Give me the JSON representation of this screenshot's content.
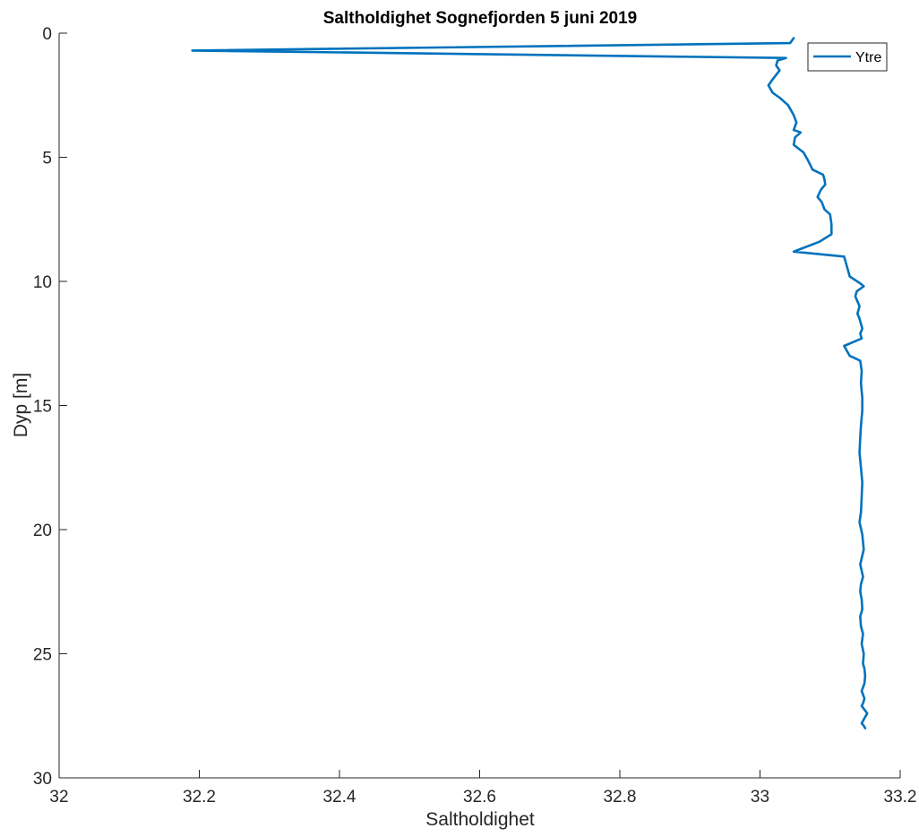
{
  "chart_data": {
    "type": "line",
    "title": "Saltholdighet Sognefjorden 5 juni 2019",
    "xlabel": "Saltholdighet",
    "ylabel": "Dyp [m]",
    "xlim": [
      32,
      33.2
    ],
    "ylim": [
      0,
      30
    ],
    "y_reversed": true,
    "x_ticks": [
      "32",
      "32.2",
      "32.4",
      "32.6",
      "32.8",
      "33",
      "33.2"
    ],
    "y_ticks": [
      "0",
      "5",
      "10",
      "15",
      "20",
      "25",
      "30"
    ],
    "grid": false,
    "legend": "top-right",
    "series": [
      {
        "name": "Ytre",
        "color": "#0072BD",
        "x": [
          33.048,
          33.043,
          32.19,
          33.037,
          33.025,
          33.023,
          33.028,
          33.017,
          33.012,
          33.018,
          33.028,
          33.04,
          33.048,
          33.052,
          33.048,
          33.058,
          33.05,
          33.048,
          33.062,
          33.068,
          33.075,
          33.09,
          33.092,
          33.093,
          33.087,
          33.082,
          33.088,
          33.092,
          33.1,
          33.102,
          33.102,
          33.085,
          33.048,
          33.12,
          33.128,
          33.144,
          33.148,
          33.138,
          33.136,
          33.142,
          33.139,
          33.142,
          33.146,
          33.143,
          33.145,
          33.12,
          33.128,
          33.143,
          33.145,
          33.144,
          33.146,
          33.146,
          33.144,
          33.143,
          33.142,
          33.144,
          33.146,
          33.145,
          33.144,
          33.142,
          33.146,
          33.148,
          33.143,
          33.147,
          33.144,
          33.143,
          33.145,
          33.146,
          33.143,
          33.144,
          33.147,
          33.145,
          33.148,
          33.147,
          33.149,
          33.15,
          33.149,
          33.145,
          33.149,
          33.147,
          33.145,
          33.153,
          33.149,
          33.145,
          33.148,
          33.15
        ],
        "y": [
          0.2,
          0.4,
          0.7,
          1.0,
          1.1,
          1.3,
          1.5,
          1.9,
          2.1,
          2.4,
          2.6,
          2.9,
          3.3,
          3.6,
          3.9,
          4.0,
          4.2,
          4.5,
          4.8,
          5.1,
          5.5,
          5.7,
          5.9,
          6.1,
          6.3,
          6.6,
          6.8,
          7.1,
          7.3,
          7.7,
          8.1,
          8.4,
          8.8,
          9.0,
          9.8,
          10.1,
          10.2,
          10.4,
          10.6,
          11.0,
          11.3,
          11.5,
          11.9,
          12.1,
          12.3,
          12.6,
          13.0,
          13.2,
          13.6,
          14.1,
          14.7,
          15.2,
          15.8,
          16.3,
          16.9,
          17.5,
          18.1,
          18.7,
          19.3,
          19.7,
          20.2,
          20.8,
          21.4,
          21.9,
          22.2,
          22.5,
          22.8,
          23.2,
          23.5,
          23.9,
          24.2,
          24.6,
          25.0,
          25.4,
          25.6,
          25.9,
          26.2,
          26.5,
          26.8,
          27.0,
          27.1,
          27.4,
          27.6,
          27.8,
          27.9,
          28.0
        ]
      }
    ]
  }
}
